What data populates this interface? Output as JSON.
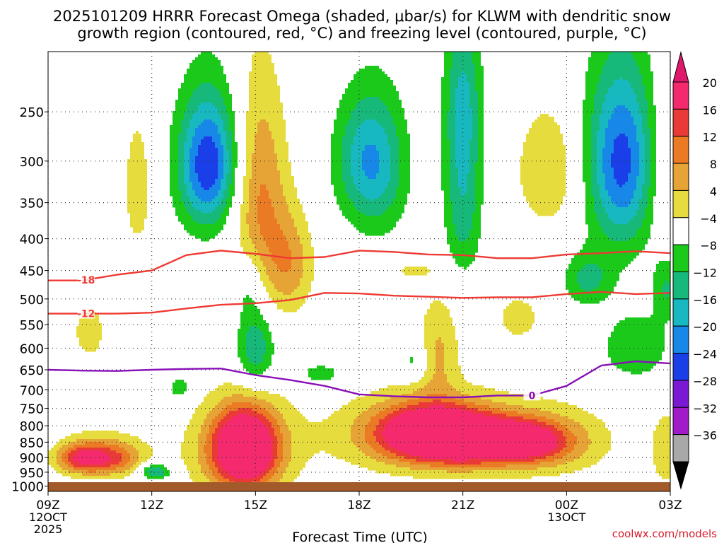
{
  "chart_data": {
    "type": "time-height contour",
    "title_line1": "2025101209 HRRR Forecast Omega (shaded, μbar/s) for KLWM with dendritic snow",
    "title_line2": "growth region (contoured, red, °C) and freezing level (contoured, purple, °C)",
    "xlabel": "Forecast Time (UTC)",
    "x_ticks": [
      {
        "hour": 0,
        "label": "09Z",
        "sub1": "12OCT",
        "sub2": "2025"
      },
      {
        "hour": 3,
        "label": "12Z"
      },
      {
        "hour": 6,
        "label": "15Z"
      },
      {
        "hour": 9,
        "label": "18Z"
      },
      {
        "hour": 12,
        "label": "21Z"
      },
      {
        "hour": 15,
        "label": "00Z",
        "sub1": "13OCT"
      },
      {
        "hour": 18,
        "label": "03Z"
      }
    ],
    "xlim_hours": [
      0,
      18
    ],
    "y_ticks": [
      250,
      300,
      350,
      400,
      450,
      500,
      550,
      600,
      650,
      700,
      750,
      800,
      850,
      900,
      950,
      1000
    ],
    "ylim_hpa": [
      200,
      1020
    ],
    "colorbar": {
      "labels": [
        "20",
        "16",
        "12",
        "8",
        "4",
        "−4",
        "−8",
        "−12",
        "−16",
        "−20",
        "−24",
        "−28",
        "−32",
        "−36"
      ],
      "bins": [
        {
          "color": "#f52a6e"
        },
        {
          "color": "#ea3a38"
        },
        {
          "color": "#eb7a24"
        },
        {
          "color": "#e7a436"
        },
        {
          "color": "#e6dc3e"
        },
        {
          "color": "#ffffff"
        },
        {
          "color": "#1bc91b"
        },
        {
          "color": "#17b97a"
        },
        {
          "color": "#17b8c0"
        },
        {
          "color": "#1888e8"
        },
        {
          "color": "#1a3ee8"
        },
        {
          "color": "#7a18d4"
        },
        {
          "color": "#a11cc8"
        },
        {
          "color": "#a8a8a8"
        }
      ],
      "top_color": "#e0186c",
      "bottom_color": "#000000"
    },
    "omega_features": [
      {
        "t": 0.9,
        "p": 903,
        "peak": 14,
        "rt": 0.7,
        "rp": 50
      },
      {
        "t": 1.8,
        "p": 905,
        "peak": 12,
        "rt": 0.9,
        "rp": 55
      },
      {
        "t": 1.6,
        "p": 880,
        "peak": 6,
        "rt": 1.3,
        "rp": 80
      },
      {
        "t": 3.1,
        "p": 948,
        "peak": -14,
        "rt": 0.45,
        "rp": 28
      },
      {
        "t": 1.2,
        "p": 565,
        "peak": 6,
        "rt": 0.55,
        "rp": 70
      },
      {
        "t": 2.6,
        "p": 330,
        "peak": 6,
        "rt": 0.5,
        "rp": 100
      },
      {
        "t": 4.6,
        "p": 308,
        "peak": -14,
        "rt": 0.8,
        "rp": 70
      },
      {
        "t": 4.7,
        "p": 295,
        "peak": -10,
        "rt": 1.0,
        "rp": 85
      },
      {
        "t": 6.1,
        "p": 340,
        "peak": 13,
        "rt": 0.8,
        "rp": 140
      },
      {
        "t": 7.0,
        "p": 440,
        "peak": 10,
        "rt": 0.7,
        "rp": 85
      },
      {
        "t": 6.0,
        "p": 600,
        "peak": -12,
        "rt": 0.55,
        "rp": 90
      },
      {
        "t": 5.8,
        "p": 470,
        "peak": -6,
        "rt": 0.45,
        "rp": 60
      },
      {
        "t": 9.2,
        "p": 298,
        "peak": -12,
        "rt": 0.95,
        "rp": 70
      },
      {
        "t": 9.6,
        "p": 312,
        "peak": -6,
        "rt": 0.9,
        "rp": 90
      },
      {
        "t": 5.7,
        "p": 868,
        "peak": 26,
        "rt": 0.9,
        "rp": 125
      },
      {
        "t": 5.5,
        "p": 880,
        "peak": 10,
        "rt": 1.5,
        "rp": 160
      },
      {
        "t": 11.0,
        "p": 820,
        "peak": 28,
        "rt": 1.6,
        "rp": 85
      },
      {
        "t": 12.5,
        "p": 845,
        "peak": 20,
        "rt": 1.6,
        "rp": 75
      },
      {
        "t": 13.8,
        "p": 848,
        "peak": 12,
        "rt": 1.0,
        "rp": 55
      },
      {
        "t": 11.5,
        "p": 830,
        "peak": 6,
        "rt": 4.4,
        "rp": 150
      },
      {
        "t": 14.5,
        "p": 850,
        "peak": 9,
        "rt": 1.5,
        "rp": 90
      },
      {
        "t": 11.3,
        "p": 600,
        "peak": 8,
        "rt": 0.6,
        "rp": 120
      },
      {
        "t": 12.0,
        "p": 360,
        "peak": -10,
        "rt": 0.55,
        "rp": 95
      },
      {
        "t": 12.0,
        "p": 240,
        "peak": -12,
        "rt": 0.55,
        "rp": 80
      },
      {
        "t": 16.6,
        "p": 300,
        "peak": -16,
        "rt": 0.95,
        "rp": 95
      },
      {
        "t": 16.6,
        "p": 300,
        "peak": -6,
        "rt": 1.3,
        "rp": 130
      },
      {
        "t": 14.5,
        "p": 310,
        "peak": 8,
        "rt": 1.0,
        "rp": 75
      },
      {
        "t": 17.9,
        "p": 305,
        "peak": 6,
        "rt": 0.7,
        "rp": 95
      },
      {
        "t": 10.5,
        "p": 450,
        "peak": 5,
        "rt": 0.7,
        "rp": 15
      },
      {
        "t": 13.6,
        "p": 535,
        "peak": 6,
        "rt": 0.7,
        "rp": 50
      },
      {
        "t": 15.6,
        "p": 465,
        "peak": -9,
        "rt": 0.7,
        "rp": 45
      },
      {
        "t": 17.0,
        "p": 600,
        "peak": -8,
        "rt": 1.0,
        "rp": 75
      },
      {
        "t": 7.9,
        "p": 660,
        "peak": -7,
        "rt": 0.7,
        "rp": 28
      },
      {
        "t": 10.6,
        "p": 630,
        "peak": -7,
        "rt": 0.4,
        "rp": 40
      },
      {
        "t": 17.9,
        "p": 480,
        "peak": -8,
        "rt": 0.4,
        "rp": 55
      },
      {
        "t": 3.8,
        "p": 695,
        "peak": -7,
        "rt": 0.35,
        "rp": 35
      },
      {
        "t": 17.9,
        "p": 880,
        "peak": 6,
        "rt": 0.5,
        "rp": 140
      }
    ],
    "dgz_contours": [
      {
        "label": "-18",
        "label_hour": 1.1,
        "points": [
          [
            0,
            467
          ],
          [
            1,
            467
          ],
          [
            2,
            457
          ],
          [
            3,
            450
          ],
          [
            4,
            425
          ],
          [
            5,
            418
          ],
          [
            6,
            423
          ],
          [
            7,
            430
          ],
          [
            8,
            428
          ],
          [
            9,
            418
          ],
          [
            10,
            420
          ],
          [
            11,
            424
          ],
          [
            12,
            425
          ],
          [
            13,
            430
          ],
          [
            14,
            430
          ],
          [
            15,
            424
          ],
          [
            16,
            422
          ],
          [
            17,
            419
          ],
          [
            18,
            422
          ]
        ]
      },
      {
        "label": "-12",
        "label_hour": 1.1,
        "points": [
          [
            0,
            528
          ],
          [
            1,
            528
          ],
          [
            2,
            528
          ],
          [
            3,
            526
          ],
          [
            4,
            518
          ],
          [
            5,
            511
          ],
          [
            6,
            508
          ],
          [
            7,
            502
          ],
          [
            8,
            489
          ],
          [
            9,
            490
          ],
          [
            10,
            494
          ],
          [
            11,
            496
          ],
          [
            12,
            498
          ],
          [
            13,
            497
          ],
          [
            14,
            497
          ],
          [
            15,
            491
          ],
          [
            16,
            487
          ],
          [
            17,
            491
          ],
          [
            18,
            489
          ]
        ]
      }
    ],
    "freezing_contour": {
      "label": "0",
      "label_hour": 14.0,
      "points": [
        [
          0,
          650
        ],
        [
          1,
          652
        ],
        [
          2,
          653
        ],
        [
          3,
          650
        ],
        [
          4,
          648
        ],
        [
          5,
          647
        ],
        [
          6,
          663
        ],
        [
          7,
          675
        ],
        [
          8,
          690
        ],
        [
          9,
          712
        ],
        [
          10,
          717
        ],
        [
          11,
          720
        ],
        [
          12,
          720
        ],
        [
          13,
          715
        ],
        [
          14,
          715
        ],
        [
          15,
          690
        ],
        [
          16,
          640
        ],
        [
          17,
          630
        ],
        [
          18,
          635
        ]
      ]
    },
    "contour_colors": {
      "dgz": "#ee3a33",
      "freezing": "#8a10b8",
      "ground": "#a35a2a"
    }
  },
  "credit": "coolwx.com/models"
}
